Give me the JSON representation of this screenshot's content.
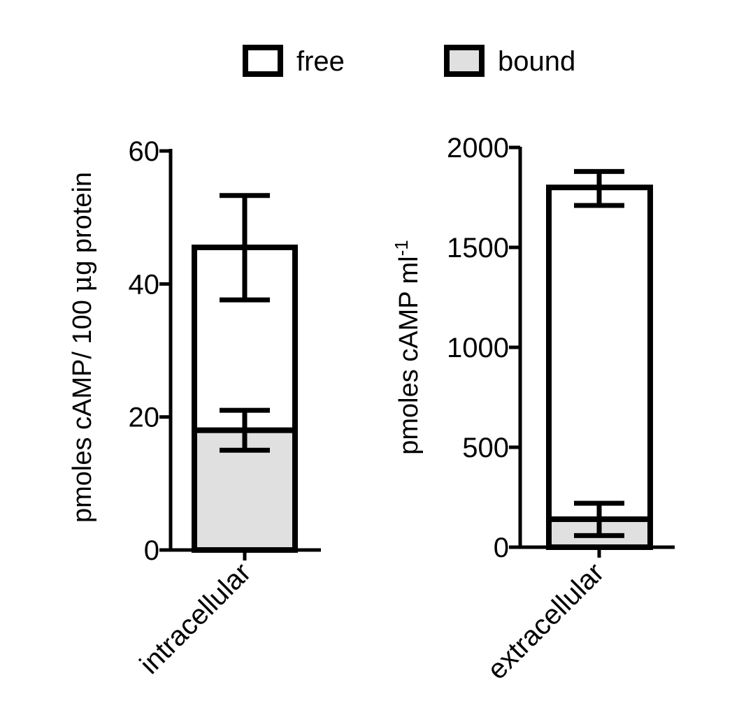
{
  "legend": {
    "items": [
      {
        "label": "free",
        "color": "#ffffff"
      },
      {
        "label": "bound",
        "color": "#e0e0e0"
      }
    ]
  },
  "colors": {
    "stroke": "#000000",
    "free": "#ffffff",
    "bound": "#e0e0e0"
  },
  "chart_data": [
    {
      "type": "bar",
      "stacked": true,
      "categories": [
        "intracellular"
      ],
      "series": [
        {
          "name": "bound",
          "values": [
            18
          ],
          "error": [
            {
              "upper": 21,
              "lower": 15
            }
          ]
        },
        {
          "name": "free",
          "values": [
            45.5
          ],
          "error": [
            {
              "upper": 53.3,
              "lower": 37.6
            }
          ]
        }
      ],
      "ylabel_main": "pmoles cAMP/ 100 ",
      "ylabel_mu": "μ",
      "ylabel_rest": "g protein",
      "ylim": [
        0,
        60
      ],
      "yticks": [
        "0",
        "20",
        "40",
        "60"
      ],
      "grid": false
    },
    {
      "type": "bar",
      "stacked": true,
      "categories": [
        "extracellular"
      ],
      "series": [
        {
          "name": "bound",
          "values": [
            140
          ],
          "error": [
            {
              "upper": 220,
              "lower": 58
            }
          ]
        },
        {
          "name": "free",
          "values": [
            1800
          ],
          "error": [
            {
              "upper": 1880,
              "lower": 1710
            }
          ]
        }
      ],
      "ylabel_main": "pmoles cAMP ml",
      "ylabel_sup": "-1",
      "ylim": [
        0,
        2000
      ],
      "yticks": [
        "0",
        "500",
        "1000",
        "1500",
        "2000"
      ],
      "grid": false
    }
  ]
}
